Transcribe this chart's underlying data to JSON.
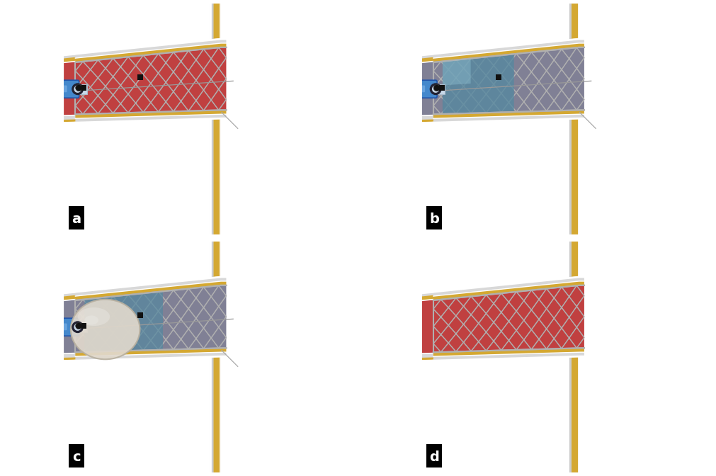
{
  "figsize": [
    10.11,
    6.72
  ],
  "dpi": 100,
  "bg_red": "#c53030",
  "vessel_wall_gray": "#d8d8d8",
  "vessel_wall_dark": "#bbbbbb",
  "plaque_yellow": "#d4a832",
  "stent_wire": "#b0b0b0",
  "stent_wire_dark": "#909090",
  "lumen_red": "#c04040",
  "lumen_gray": "#808095",
  "catheter_blue": "#4488cc",
  "catheter_shaft": "#c8d8e8",
  "marker_black": "#111111",
  "balloon_sphere_fill": "#e0d8cc",
  "balloon_sphere_edge": "#b8b0a0",
  "balloon_distal_fill": "#5588a0",
  "white": "#ffffff",
  "aorta_wall_gray": "#cccccc",
  "panel_labels": [
    "a",
    "b",
    "c",
    "d"
  ]
}
